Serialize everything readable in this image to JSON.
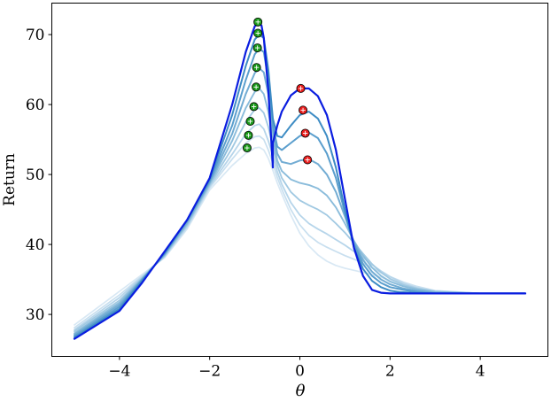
{
  "chart_data": {
    "type": "line",
    "title": "",
    "xlabel": "θ",
    "ylabel": "Return",
    "xlim": [
      -5.5,
      5.5
    ],
    "ylim": [
      24,
      74.5
    ],
    "xticks": [
      -4,
      -2,
      0,
      2,
      4
    ],
    "xtick_labels": [
      "−4",
      "−2",
      "0",
      "2",
      "4"
    ],
    "yticks": [
      30,
      40,
      50,
      60,
      70
    ],
    "ytick_labels": [
      "30",
      "40",
      "50",
      "60",
      "70"
    ],
    "grid": false,
    "legend": "none",
    "series": [
      {
        "color": "#0a1de0",
        "width": 2.2,
        "x": [
          -5,
          -4,
          -3.5,
          -3,
          -2.5,
          -2,
          -1.5,
          -1.2,
          -1,
          -0.9,
          -0.85,
          -0.8,
          -0.7,
          -0.6,
          -0.6,
          -0.5,
          -0.4,
          -0.2,
          0,
          0.2,
          0.4,
          0.6,
          0.8,
          1,
          1.2,
          1.4,
          1.6,
          1.8,
          2,
          2.5,
          3,
          4,
          5
        ],
        "y": [
          26.5,
          30.5,
          34.5,
          39,
          43.5,
          49.5,
          60,
          67.5,
          71.2,
          71.6,
          71.3,
          69.5,
          62,
          51,
          54.5,
          57,
          59,
          61.3,
          62.3,
          62.3,
          61.2,
          58.5,
          53.5,
          46.5,
          39.5,
          35.5,
          33.5,
          33.1,
          33,
          33,
          33,
          33,
          33
        ]
      },
      {
        "color": "#3d8cc4",
        "width": 2.0,
        "x": [
          -5,
          -4,
          -3,
          -2.5,
          -2,
          -1.5,
          -1.2,
          -1,
          -0.9,
          -0.8,
          -0.7,
          -0.6,
          -0.5,
          -0.4,
          -0.2,
          0,
          0.2,
          0.4,
          0.6,
          0.8,
          1,
          1.2,
          1.4,
          1.6,
          1.8,
          2,
          2.2,
          2.5,
          3,
          4,
          5
        ],
        "y": [
          26.7,
          30.8,
          38.8,
          43.5,
          49.3,
          58.5,
          65.5,
          69.3,
          70,
          69.5,
          65,
          58,
          55.5,
          55.3,
          57,
          58.5,
          59,
          58,
          55.5,
          51,
          45,
          39.5,
          36.5,
          34.8,
          33.9,
          33.4,
          33.2,
          33.1,
          33,
          33,
          33
        ]
      },
      {
        "color": "#5a9ecd",
        "width": 2.0,
        "x": [
          -5,
          -4,
          -3,
          -2.5,
          -2,
          -1.5,
          -1.2,
          -1,
          -0.9,
          -0.8,
          -0.7,
          -0.6,
          -0.5,
          -0.4,
          -0.2,
          0,
          0.2,
          0.4,
          0.6,
          0.8,
          1,
          1.2,
          1.4,
          1.6,
          1.8,
          2,
          2.3,
          2.6,
          3,
          4,
          5
        ],
        "y": [
          26.9,
          31.1,
          38.7,
          43.4,
          49.1,
          57,
          63.5,
          67.2,
          68,
          67.5,
          63.5,
          57,
          54,
          53.5,
          54.5,
          55.5,
          56,
          55.2,
          53,
          49.5,
          44.5,
          40,
          37.2,
          35.5,
          34.5,
          33.9,
          33.5,
          33.2,
          33,
          33,
          33
        ]
      },
      {
        "color": "#72acd3",
        "width": 2.0,
        "x": [
          -5,
          -4,
          -3,
          -2.5,
          -2,
          -1.5,
          -1.2,
          -1,
          -0.9,
          -0.8,
          -0.7,
          -0.6,
          -0.5,
          -0.4,
          -0.2,
          0,
          0.2,
          0.4,
          0.6,
          0.8,
          1,
          1.2,
          1.4,
          1.6,
          1.8,
          2,
          2.3,
          2.6,
          3,
          4,
          5
        ],
        "y": [
          27.1,
          31.4,
          38.6,
          43.2,
          48.9,
          55.8,
          61.5,
          64.5,
          65.2,
          64.6,
          61.5,
          56.5,
          53,
          51.8,
          51.5,
          52,
          52.2,
          51.5,
          50,
          47.5,
          44,
          40.3,
          37.8,
          36.1,
          35,
          34.3,
          33.7,
          33.4,
          33.1,
          33,
          33
        ]
      },
      {
        "color": "#8abcdb",
        "width": 1.9,
        "x": [
          -5,
          -4,
          -3,
          -2.5,
          -2,
          -1.5,
          -1.2,
          -1,
          -0.9,
          -0.8,
          -0.7,
          -0.6,
          -0.5,
          -0.4,
          -0.2,
          0,
          0.2,
          0.4,
          0.6,
          0.8,
          1,
          1.2,
          1.4,
          1.6,
          1.8,
          2,
          2.3,
          2.6,
          3,
          4,
          5
        ],
        "y": [
          27.3,
          31.7,
          38.5,
          43,
          48.7,
          54.8,
          59.5,
          61.8,
          62.3,
          61.5,
          59,
          55.3,
          52,
          50.5,
          49.3,
          48.8,
          48.5,
          48,
          47,
          45.3,
          43,
          40.5,
          38.4,
          36.7,
          35.5,
          34.7,
          34,
          33.6,
          33.2,
          33,
          33
        ]
      },
      {
        "color": "#a1c9e2",
        "width": 1.8,
        "x": [
          -5,
          -4,
          -3,
          -2.5,
          -2,
          -1.5,
          -1.2,
          -1,
          -0.9,
          -0.8,
          -0.7,
          -0.6,
          -0.5,
          -0.4,
          -0.2,
          0,
          0.2,
          0.4,
          0.6,
          0.8,
          1,
          1.2,
          1.4,
          1.6,
          1.8,
          2,
          2.3,
          2.6,
          3,
          4,
          5
        ],
        "y": [
          27.6,
          32,
          38.4,
          42.8,
          48.5,
          53.8,
          57.5,
          59.3,
          59.5,
          58.8,
          56.8,
          54,
          51.3,
          49.5,
          47.5,
          46.3,
          45.6,
          45,
          44.2,
          43,
          41.7,
          40.2,
          38.7,
          37.2,
          36,
          35.1,
          34.2,
          33.7,
          33.3,
          33,
          33
        ]
      },
      {
        "color": "#b6d5ea",
        "width": 1.8,
        "x": [
          -5,
          -4,
          -3,
          -2.5,
          -2,
          -1.5,
          -1.2,
          -1,
          -0.9,
          -0.8,
          -0.7,
          -0.6,
          -0.5,
          -0.4,
          -0.2,
          0,
          0.2,
          0.4,
          0.6,
          0.8,
          1,
          1.2,
          1.4,
          1.6,
          1.8,
          2,
          2.3,
          2.6,
          3,
          4,
          5
        ],
        "y": [
          27.8,
          32.4,
          38.3,
          42.6,
          48.3,
          52.9,
          55.8,
          57,
          57.2,
          56.5,
          54.8,
          52.7,
          50.4,
          48.6,
          46,
          44.2,
          43,
          42.2,
          41.5,
          40.7,
          39.9,
          39,
          38.1,
          37.1,
          36.2,
          35.4,
          34.4,
          33.8,
          33.3,
          33,
          33
        ]
      },
      {
        "color": "#c8dfef",
        "width": 1.7,
        "x": [
          -5,
          -4,
          -3,
          -2.5,
          -2,
          -1.5,
          -1.2,
          -1,
          -0.9,
          -0.8,
          -0.7,
          -0.6,
          -0.5,
          -0.4,
          -0.2,
          0,
          0.2,
          0.4,
          0.6,
          0.8,
          1,
          1.2,
          1.4,
          1.6,
          1.8,
          2,
          2.3,
          2.6,
          3,
          4,
          5
        ],
        "y": [
          28.1,
          32.8,
          38.2,
          42.4,
          48.1,
          52.2,
          54.5,
          55.4,
          55.5,
          55,
          53.5,
          51.6,
          49.6,
          47.9,
          45,
          42.8,
          41.3,
          40.3,
          39.6,
          39,
          38.4,
          37.9,
          37.3,
          36.7,
          36,
          35.4,
          34.6,
          34,
          33.4,
          33,
          33
        ]
      },
      {
        "color": "#d8e8f4",
        "width": 1.7,
        "x": [
          -5,
          -4,
          -3,
          -2.5,
          -2,
          -1.5,
          -1.2,
          -1,
          -0.9,
          -0.8,
          -0.7,
          -0.6,
          -0.5,
          -0.4,
          -0.2,
          0,
          0.2,
          0.4,
          0.6,
          0.8,
          1,
          1.2,
          1.4,
          1.6,
          1.8,
          2,
          2.3,
          2.6,
          3,
          4,
          5
        ],
        "y": [
          28.5,
          33.3,
          38.1,
          42.2,
          47.8,
          51.3,
          53,
          53.8,
          53.9,
          53.5,
          52.3,
          50.6,
          48.8,
          47.2,
          44.2,
          41.6,
          39.8,
          38.5,
          37.6,
          37,
          36.6,
          36.3,
          36,
          35.7,
          35.3,
          34.9,
          34.3,
          33.8,
          33.4,
          33,
          33
        ]
      }
    ],
    "markers": {
      "green": {
        "color": "#1a9a1a",
        "x": [
          -0.93,
          -0.93,
          -0.94,
          -0.96,
          -0.97,
          -1.02,
          -1.1,
          -1.14,
          -1.17
        ],
        "y": [
          71.8,
          70.2,
          68.1,
          65.3,
          62.5,
          59.7,
          57.6,
          55.6,
          53.8
        ]
      },
      "red": {
        "color": "#e81c1c",
        "x": [
          0.02,
          0.07,
          0.12,
          0.17
        ],
        "y": [
          62.3,
          59.2,
          55.9,
          52.1
        ]
      }
    }
  }
}
